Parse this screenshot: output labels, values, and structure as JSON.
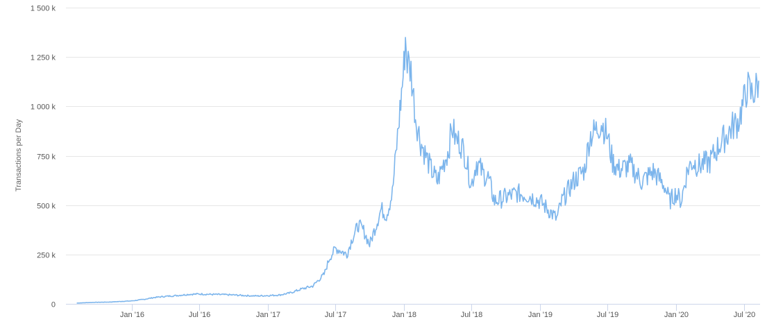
{
  "chart_data": {
    "type": "line",
    "title": "",
    "xlabel": "",
    "ylabel": "Transactions per Day",
    "x_range": [
      "2015-03-01",
      "2020-08-20"
    ],
    "ylim": [
      0,
      1500000
    ],
    "y_ticks": [
      {
        "value": 0,
        "label": "0"
      },
      {
        "value": 250000,
        "label": "250 k"
      },
      {
        "value": 500000,
        "label": "500 k"
      },
      {
        "value": 750000,
        "label": "750 k"
      },
      {
        "value": 1000000,
        "label": "1 000 k"
      },
      {
        "value": 1250000,
        "label": "1 250 k"
      },
      {
        "value": 1500000,
        "label": "1 500 k"
      }
    ],
    "x_ticks": [
      {
        "date": "2016-01-01",
        "label": "Jan '16"
      },
      {
        "date": "2016-07-01",
        "label": "Jul '16"
      },
      {
        "date": "2017-01-01",
        "label": "Jan '17"
      },
      {
        "date": "2017-07-01",
        "label": "Jul '17"
      },
      {
        "date": "2018-01-01",
        "label": "Jan '18"
      },
      {
        "date": "2018-07-01",
        "label": "Jul '18"
      },
      {
        "date": "2019-01-01",
        "label": "Jan '19"
      },
      {
        "date": "2019-07-01",
        "label": "Jul '19"
      },
      {
        "date": "2020-01-01",
        "label": "Jan '20"
      },
      {
        "date": "2020-07-01",
        "label": "Jul '20"
      }
    ],
    "grid": true,
    "legend": "none",
    "series": [
      {
        "color": "#7cb5ec",
        "points": [
          [
            "2015-08-07",
            4000
          ],
          [
            "2015-09-01",
            6000
          ],
          [
            "2015-10-01",
            8000
          ],
          [
            "2015-11-01",
            9000
          ],
          [
            "2015-12-01",
            12000
          ],
          [
            "2016-01-01",
            15000
          ],
          [
            "2016-02-01",
            22000
          ],
          [
            "2016-03-01",
            32000
          ],
          [
            "2016-04-01",
            38000
          ],
          [
            "2016-05-01",
            42000
          ],
          [
            "2016-06-01",
            48000
          ],
          [
            "2016-07-01",
            50000
          ],
          [
            "2016-08-01",
            48000
          ],
          [
            "2016-09-01",
            47000
          ],
          [
            "2016-10-01",
            45000
          ],
          [
            "2016-11-01",
            42000
          ],
          [
            "2016-12-01",
            40000
          ],
          [
            "2017-01-01",
            42000
          ],
          [
            "2017-02-01",
            45000
          ],
          [
            "2017-03-01",
            55000
          ],
          [
            "2017-04-01",
            75000
          ],
          [
            "2017-05-01",
            90000
          ],
          [
            "2017-06-01",
            150000
          ],
          [
            "2017-06-15",
            230000
          ],
          [
            "2017-07-01",
            280000
          ],
          [
            "2017-07-15",
            270000
          ],
          [
            "2017-08-01",
            250000
          ],
          [
            "2017-08-15",
            330000
          ],
          [
            "2017-09-01",
            400000
          ],
          [
            "2017-09-15",
            370000
          ],
          [
            "2017-10-01",
            300000
          ],
          [
            "2017-10-15",
            380000
          ],
          [
            "2017-11-01",
            480000
          ],
          [
            "2017-11-15",
            450000
          ],
          [
            "2017-12-01",
            560000
          ],
          [
            "2017-12-15",
            850000
          ],
          [
            "2018-01-01",
            1200000
          ],
          [
            "2018-01-05",
            1350000
          ],
          [
            "2018-01-10",
            1230000
          ],
          [
            "2018-01-20",
            1180000
          ],
          [
            "2018-02-01",
            950000
          ],
          [
            "2018-02-15",
            820000
          ],
          [
            "2018-03-01",
            750000
          ],
          [
            "2018-03-15",
            680000
          ],
          [
            "2018-04-01",
            620000
          ],
          [
            "2018-04-15",
            700000
          ],
          [
            "2018-05-01",
            780000
          ],
          [
            "2018-05-10",
            900000
          ],
          [
            "2018-05-20",
            830000
          ],
          [
            "2018-06-01",
            820000
          ],
          [
            "2018-06-15",
            750000
          ],
          [
            "2018-07-01",
            600000
          ],
          [
            "2018-07-15",
            720000
          ],
          [
            "2018-08-01",
            660000
          ],
          [
            "2018-08-15",
            640000
          ],
          [
            "2018-09-01",
            520000
          ],
          [
            "2018-10-01",
            540000
          ],
          [
            "2018-11-01",
            560000
          ],
          [
            "2018-12-01",
            550000
          ],
          [
            "2019-01-01",
            520000
          ],
          [
            "2019-02-01",
            460000
          ],
          [
            "2019-02-15",
            430000
          ],
          [
            "2019-03-01",
            520000
          ],
          [
            "2019-04-01",
            620000
          ],
          [
            "2019-05-01",
            680000
          ],
          [
            "2019-05-15",
            850000
          ],
          [
            "2019-06-01",
            880000
          ],
          [
            "2019-06-15",
            920000
          ],
          [
            "2019-07-01",
            850000
          ],
          [
            "2019-07-15",
            720000
          ],
          [
            "2019-08-01",
            680000
          ],
          [
            "2019-09-01",
            700000
          ],
          [
            "2019-10-01",
            620000
          ],
          [
            "2019-11-01",
            670000
          ],
          [
            "2019-12-01",
            600000
          ],
          [
            "2019-12-15",
            520000
          ],
          [
            "2020-01-01",
            560000
          ],
          [
            "2020-01-15",
            520000
          ],
          [
            "2020-02-01",
            680000
          ],
          [
            "2020-02-15",
            720000
          ],
          [
            "2020-03-01",
            700000
          ],
          [
            "2020-04-01",
            720000
          ],
          [
            "2020-05-01",
            820000
          ],
          [
            "2020-05-15",
            850000
          ],
          [
            "2020-06-01",
            900000
          ],
          [
            "2020-06-15",
            920000
          ],
          [
            "2020-07-01",
            1020000
          ],
          [
            "2020-07-10",
            1100000
          ],
          [
            "2020-07-20",
            1060000
          ],
          [
            "2020-08-01",
            1080000
          ],
          [
            "2020-08-10",
            1130000
          ]
        ]
      }
    ]
  }
}
